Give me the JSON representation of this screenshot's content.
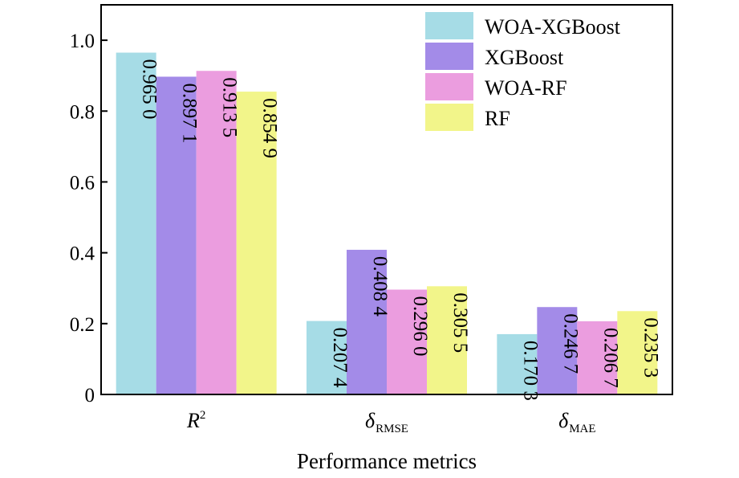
{
  "chart_data": {
    "type": "bar",
    "title": "",
    "xlabel": "Performance metrics",
    "ylabel": "",
    "ylim": [
      0,
      1.1
    ],
    "yticks": [
      {
        "value": 0,
        "label": "0"
      },
      {
        "value": 0.2,
        "label": "0.2"
      },
      {
        "value": 0.4,
        "label": "0.4"
      },
      {
        "value": 0.6,
        "label": "0.6"
      },
      {
        "value": 0.8,
        "label": "0.8"
      },
      {
        "value": 1.0,
        "label": "1.0"
      }
    ],
    "categories": [
      {
        "main": "R",
        "sup": "2",
        "sub": ""
      },
      {
        "main": "δ",
        "sup": "",
        "sub": "RMSE"
      },
      {
        "main": "δ",
        "sup": "",
        "sub": "MAE"
      }
    ],
    "series": [
      {
        "name": "WOA-XGBoost",
        "color": "#a6dce6",
        "values": [
          0.965,
          0.2074,
          0.1703
        ],
        "labels": [
          "0.965 0",
          "0.207 4",
          "0.170 3"
        ]
      },
      {
        "name": "XGBoost",
        "color": "#a38be8",
        "values": [
          0.8971,
          0.4084,
          0.2467
        ],
        "labels": [
          "0.897 1",
          "0.408 4",
          "0.246 7"
        ]
      },
      {
        "name": "WOA-RF",
        "color": "#eb9ddf",
        "values": [
          0.9135,
          0.296,
          0.2067
        ],
        "labels": [
          "0.913 5",
          "0.296 0",
          "0.206 7"
        ]
      },
      {
        "name": "RF",
        "color": "#f2f58a",
        "values": [
          0.8549,
          0.3055,
          0.2353
        ],
        "labels": [
          "0.854 9",
          "0.305 5",
          "0.235 3"
        ]
      }
    ],
    "legend": "top-right",
    "grid": false
  }
}
